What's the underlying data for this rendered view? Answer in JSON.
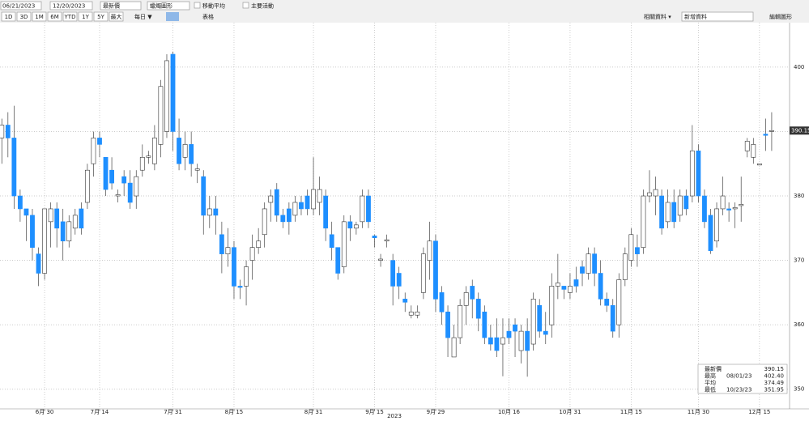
{
  "toolbar": {
    "start_date": "06/21/2023",
    "end_date": "12/20/2023",
    "field": "最新價",
    "chart_style": "蠟燭圖形",
    "moving_avg": "移動平均",
    "events": "主要活動",
    "ranges": [
      "1D",
      "3D",
      "1M",
      "6M",
      "YTD",
      "1Y",
      "5Y",
      "最大"
    ],
    "period": "每日 ▼",
    "table": "表格",
    "related": "相關資料 ▾",
    "add": "新增資料",
    "edit": "編輯圖形"
  },
  "chart_data": {
    "type": "candlestick",
    "up_color": "#ffffff",
    "down_color": "#1e8fff",
    "grid": true,
    "open": [
      389,
      391,
      389,
      380,
      378,
      377,
      371,
      368,
      376,
      378,
      376,
      373,
      375,
      378,
      379,
      385,
      389,
      386,
      384,
      380,
      383,
      382,
      380,
      384,
      386,
      385,
      388,
      390,
      402,
      389,
      386,
      388,
      384,
      383,
      377,
      378,
      374,
      371,
      372,
      366,
      366,
      370,
      372,
      374,
      379,
      381,
      377,
      378,
      377,
      379,
      380,
      378,
      379,
      380,
      374,
      372,
      369,
      376,
      375,
      376,
      380,
      373.8,
      370,
      373,
      370,
      368,
      364,
      361.5,
      361.5,
      365,
      370,
      373,
      365,
      362,
      355,
      358,
      363,
      366,
      364,
      362,
      358,
      358,
      357,
      359,
      360,
      356,
      359,
      357,
      363,
      359,
      360,
      366,
      366,
      365,
      367,
      369,
      368,
      371,
      368,
      364,
      363,
      360,
      367,
      370,
      372,
      372,
      380,
      380,
      380,
      376,
      379,
      377,
      380,
      380,
      387,
      380,
      377,
      373,
      378,
      378,
      378,
      378.5,
      387,
      386,
      384.8,
      389.6,
      390
    ],
    "high": [
      392,
      393,
      394,
      381,
      378,
      378,
      372,
      378,
      379,
      379,
      378,
      377,
      378,
      379,
      385,
      390,
      390,
      386,
      386,
      381,
      384,
      384,
      384,
      388,
      387,
      391,
      398,
      402,
      402.4,
      392,
      390,
      390,
      385,
      384,
      380,
      380,
      376,
      375,
      373,
      367,
      370,
      374,
      375,
      379,
      381,
      382,
      378,
      379,
      380,
      380,
      381,
      386,
      383,
      381,
      376,
      372,
      377,
      377,
      376,
      381,
      381,
      374,
      371,
      374,
      371,
      369,
      365,
      363,
      363,
      372,
      376,
      374,
      366,
      363,
      360,
      364,
      366,
      367,
      365,
      363,
      360,
      361,
      361,
      361,
      361,
      360,
      361,
      365,
      364,
      362,
      368,
      371,
      366,
      368,
      369,
      370,
      372,
      372,
      370,
      365,
      364,
      368,
      372,
      375,
      374,
      381,
      384,
      383,
      381,
      381,
      381,
      381,
      381,
      391,
      388,
      381,
      378,
      379,
      383,
      379,
      379,
      383,
      389,
      389,
      385,
      392,
      393
    ],
    "low": [
      385,
      386,
      378,
      376,
      373,
      370,
      366,
      367,
      372,
      372,
      370,
      372,
      374,
      374,
      378,
      383,
      386,
      380,
      381,
      379,
      380,
      378,
      378,
      383,
      385,
      384,
      386,
      389,
      387,
      384,
      384,
      383,
      382,
      374,
      375,
      374,
      368,
      369,
      364,
      364,
      363,
      367,
      371,
      372,
      376,
      376,
      375,
      374,
      376,
      377,
      377,
      377,
      377,
      373,
      370,
      367,
      368,
      373,
      374,
      375,
      375,
      372,
      369,
      372,
      363,
      364,
      362,
      361,
      361,
      364,
      367,
      362,
      360,
      355,
      355,
      357,
      360,
      361,
      359,
      357,
      356,
      355,
      352,
      357,
      355,
      354,
      351.95,
      356,
      358,
      357,
      358,
      364,
      364,
      364,
      365,
      366,
      367,
      366,
      363,
      362,
      358,
      358,
      366,
      369,
      369,
      371,
      379,
      377,
      374,
      375,
      375,
      376,
      377,
      379,
      379,
      375,
      371,
      372,
      377,
      376,
      375,
      376,
      386,
      385,
      384.8,
      387,
      387
    ],
    "close": [
      391,
      389,
      380,
      378,
      377,
      372,
      368,
      378,
      378,
      375,
      373,
      376,
      377,
      375,
      384,
      389,
      388,
      381,
      382,
      380.2,
      382,
      379,
      383,
      386,
      386.2,
      389,
      397,
      401,
      390,
      385,
      388,
      385,
      384.2,
      377,
      378,
      377,
      371,
      372,
      366,
      365.8,
      369,
      372,
      373,
      378,
      380,
      377,
      376,
      376,
      379,
      378,
      378,
      381,
      381,
      375,
      372,
      368,
      376,
      375,
      375.5,
      380,
      376,
      373.5,
      370.2,
      373.2,
      366,
      366,
      363.5,
      362,
      362,
      371,
      373,
      364,
      362,
      358,
      358,
      363,
      365,
      364,
      361,
      358,
      357,
      356,
      358,
      358,
      359,
      359,
      356,
      364,
      359,
      358.5,
      366,
      366.5,
      365.5,
      366,
      366,
      368,
      371,
      368,
      364,
      363,
      359,
      367,
      371,
      374,
      371,
      380,
      380.5,
      381,
      375,
      379,
      376,
      380,
      378,
      387,
      380,
      376,
      371.5,
      378,
      380,
      377.8,
      378.2,
      378.7,
      388.5,
      388,
      385,
      389.4,
      390.15
    ],
    "xlim": [
      -0.3,
      127.6
    ],
    "xticks": [
      {
        "value": 7,
        "label": "6月 30"
      },
      {
        "value": 16,
        "label": "7月 14"
      },
      {
        "value": 28,
        "label": "7月 31"
      },
      {
        "value": 38,
        "label": "8月 15"
      },
      {
        "value": 51,
        "label": "8月 31"
      },
      {
        "value": 61,
        "label": "9月 15"
      },
      {
        "value": 71,
        "label": "9月 29"
      },
      {
        "value": 83,
        "label": "10月 16"
      },
      {
        "value": 93,
        "label": "10月 31"
      },
      {
        "value": 103,
        "label": "11月 15"
      },
      {
        "value": 114,
        "label": "11月 30"
      },
      {
        "value": 124,
        "label": "12月 15"
      }
    ],
    "x_year": "2023",
    "ylim": [
      347.2,
      406.9
    ],
    "yticks": [
      350,
      360,
      370,
      380,
      390,
      400
    ],
    "last_label": "390.15",
    "stats": [
      {
        "label": "最新價",
        "date": "",
        "value": "390.15"
      },
      {
        "label": "最高",
        "date": "08/01/23",
        "value": "402.40"
      },
      {
        "label": "平均",
        "date": "",
        "value": "374.49"
      },
      {
        "label": "最低",
        "date": "10/23/23",
        "value": "351.95"
      }
    ]
  }
}
